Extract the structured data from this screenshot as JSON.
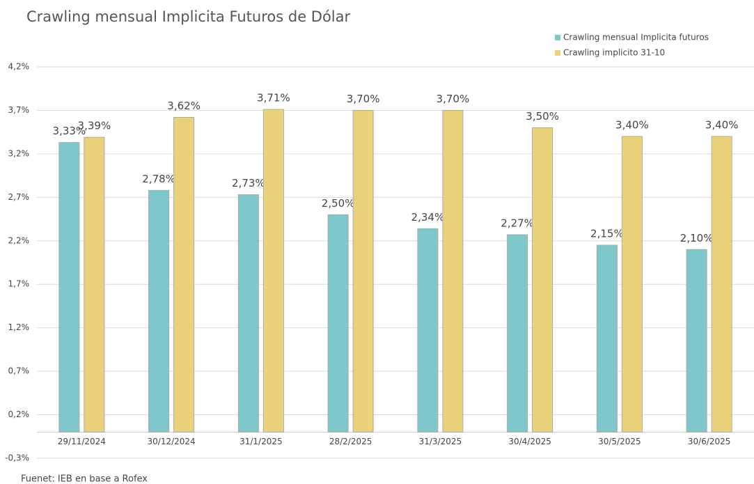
{
  "chart_data": {
    "type": "bar",
    "title": "Crawling mensual Implicita Futuros de Dólar",
    "source": "Fuenet: IEB en base a Rofex",
    "categories": [
      "29/11/2024",
      "30/12/2024",
      "31/1/2025",
      "28/2/2025",
      "31/3/2025",
      "30/4/2025",
      "30/5/2025",
      "30/6/2025"
    ],
    "series": [
      {
        "name": "Crawling mensual Implicita futuros",
        "color": "#7ec8cc",
        "values": [
          3.33,
          2.78,
          2.73,
          2.5,
          2.34,
          2.27,
          2.15,
          2.1
        ],
        "value_labels": [
          "3,33%",
          "2,78%",
          "2,73%",
          "2,50%",
          "2,34%",
          "2,27%",
          "2,15%",
          "2,10%"
        ]
      },
      {
        "name": "Crawling implicito 31-10",
        "color": "#ead27a",
        "values": [
          3.39,
          3.62,
          3.71,
          3.7,
          3.7,
          3.5,
          3.4,
          3.4
        ],
        "value_labels": [
          "3,39%",
          "3,62%",
          "3,71%",
          "3,70%",
          "3,70%",
          "3,50%",
          "3,40%",
          "3,40%"
        ]
      }
    ],
    "ylim": [
      -0.3,
      4.2
    ],
    "yticks": [
      {
        "value": -0.3,
        "label": "-0,3%"
      },
      {
        "value": 0.2,
        "label": "0,2%"
      },
      {
        "value": 0.7,
        "label": "0,7%"
      },
      {
        "value": 1.2,
        "label": "1,2%"
      },
      {
        "value": 1.7,
        "label": "1,7%"
      },
      {
        "value": 2.2,
        "label": "2,2%"
      },
      {
        "value": 2.7,
        "label": "2,7%"
      },
      {
        "value": 3.2,
        "label": "3,2%"
      },
      {
        "value": 3.7,
        "label": "3,7%"
      },
      {
        "value": 4.2,
        "label": "4,2%"
      }
    ],
    "grid": true,
    "legend": "top-right"
  }
}
